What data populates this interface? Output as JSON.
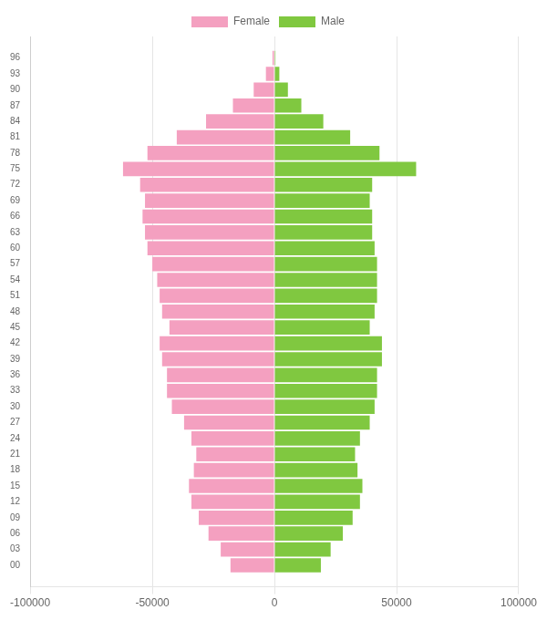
{
  "chart_data": {
    "type": "bar",
    "orientation": "horizontal",
    "x": [
      0,
      3,
      6,
      9,
      12,
      15,
      18,
      21,
      24,
      27,
      30,
      33,
      36,
      39,
      42,
      45,
      48,
      51,
      54,
      57,
      60,
      63,
      66,
      69,
      72,
      75,
      78,
      81,
      84,
      87,
      90,
      93,
      96
    ],
    "series": [
      {
        "name": "Female",
        "color": "#f4a0c0",
        "values": [
          -18000,
          -22000,
          -27000,
          -31000,
          -34000,
          -35000,
          -33000,
          -32000,
          -34000,
          -37000,
          -42000,
          -44000,
          -44000,
          -46000,
          -47000,
          -43000,
          -46000,
          -47000,
          -48000,
          -50000,
          -52000,
          -53000,
          -54000,
          -53000,
          -55000,
          -62000,
          -52000,
          -40000,
          -28000,
          -17000,
          -8500,
          -3500,
          -800
        ]
      },
      {
        "name": "Male",
        "color": "#80c840",
        "values": [
          19000,
          23000,
          28000,
          32000,
          35000,
          36000,
          34000,
          33000,
          35000,
          39000,
          41000,
          42000,
          42000,
          44000,
          44000,
          39000,
          41000,
          42000,
          42000,
          42000,
          41000,
          40000,
          40000,
          39000,
          40000,
          58000,
          43000,
          31000,
          20000,
          11000,
          5500,
          2000,
          400
        ]
      }
    ],
    "xlim": [
      -100000,
      100000
    ],
    "xticks": [
      -100000,
      -50000,
      0,
      50000,
      100000
    ],
    "ylim": [
      -2.5,
      98.5
    ],
    "yticks": [
      {
        "value": 0,
        "label": "00"
      },
      {
        "value": 3,
        "label": "03"
      },
      {
        "value": 6,
        "label": "06"
      },
      {
        "value": 9,
        "label": "09"
      },
      12,
      15,
      18,
      21,
      24,
      27,
      30,
      33,
      36,
      39,
      42,
      45,
      48,
      51,
      54,
      57,
      60,
      63,
      66,
      69,
      72,
      75,
      78,
      81,
      84,
      87,
      90,
      93,
      96
    ],
    "grid": true,
    "legend": "top"
  }
}
